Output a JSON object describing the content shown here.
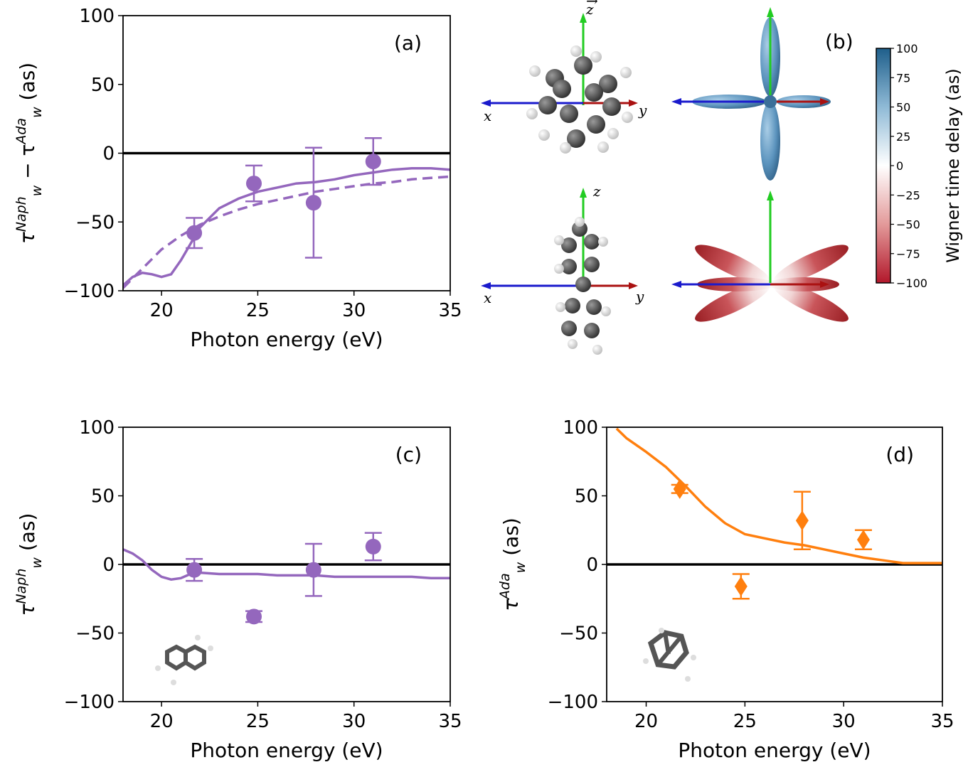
{
  "chart_data": [
    {
      "panel": "(a)",
      "type": "line",
      "xlabel": "Photon energy (eV)",
      "ylabel_main": "τ",
      "ylabel_sub1": "w",
      "ylabel_sup1": "Naph",
      "ylabel_minus": " − τ",
      "ylabel_sub2": "w",
      "ylabel_sup2": "Ada",
      "ylabel_unit": " (as)",
      "xlim": [
        18,
        35
      ],
      "ylim": [
        -100,
        100
      ],
      "xticks": [
        20,
        25,
        30,
        35
      ],
      "yticks": [
        -100,
        -50,
        0,
        50,
        100
      ],
      "ytick_labels": [
        "−100",
        "−50",
        "0",
        "50",
        "100"
      ],
      "color": "#9467bd",
      "zero_line": true,
      "series": [
        {
          "style": "solid",
          "x": [
            18,
            18.5,
            19,
            19.5,
            20,
            20.5,
            21,
            21.5,
            22,
            22.5,
            23,
            24,
            25,
            26,
            27,
            28,
            29,
            30,
            31,
            32,
            33,
            34,
            35
          ],
          "y": [
            -96,
            -90,
            -87,
            -88,
            -90,
            -88,
            -78,
            -66,
            -54,
            -47,
            -40,
            -33,
            -28,
            -25,
            -22,
            -21,
            -19,
            -16,
            -14,
            -12,
            -11,
            -11,
            -12
          ]
        },
        {
          "style": "dashed",
          "x": [
            18,
            19,
            20,
            21,
            22,
            23,
            24,
            25,
            26,
            27,
            28,
            29,
            30,
            31,
            32,
            33,
            34,
            35
          ],
          "y": [
            -98,
            -84,
            -70,
            -60,
            -52,
            -46,
            -41,
            -37,
            -34,
            -31,
            -28,
            -26,
            -24,
            -22,
            -21,
            -19,
            -18,
            -17
          ]
        }
      ],
      "points": {
        "marker": "circle",
        "x": [
          21.7,
          24.8,
          27.9,
          31.0
        ],
        "y": [
          -58,
          -22,
          -36,
          -6
        ],
        "yerr": [
          11,
          13,
          40,
          17
        ]
      }
    },
    {
      "panel": "(c)",
      "type": "line",
      "xlabel": "Photon energy (eV)",
      "ylabel_main": "τ",
      "ylabel_sub1": "w",
      "ylabel_sup1": "Naph",
      "ylabel_unit": " (as)",
      "xlim": [
        18,
        35
      ],
      "ylim": [
        -100,
        100
      ],
      "xticks": [
        20,
        25,
        30,
        35
      ],
      "yticks": [
        -100,
        -50,
        0,
        50,
        100
      ],
      "ytick_labels": [
        "−100",
        "−50",
        "0",
        "50",
        "100"
      ],
      "color": "#9467bd",
      "zero_line": true,
      "series": [
        {
          "style": "solid",
          "x": [
            18,
            18.5,
            19,
            19.5,
            20,
            20.5,
            21,
            21.5,
            22,
            23,
            24,
            25,
            26,
            27,
            28,
            29,
            30,
            31,
            32,
            33,
            34,
            35
          ],
          "y": [
            11,
            8,
            3,
            -4,
            -9,
            -11,
            -10,
            -7,
            -6,
            -7,
            -7,
            -7,
            -8,
            -8,
            -8,
            -9,
            -9,
            -9,
            -9,
            -9,
            -10,
            -10
          ]
        }
      ],
      "points": {
        "marker": "circle",
        "x": [
          21.7,
          24.8,
          27.9,
          31.0
        ],
        "y": [
          -4,
          -38,
          -4,
          13
        ],
        "yerr": [
          8,
          4,
          19,
          10
        ]
      }
    },
    {
      "panel": "(d)",
      "type": "line",
      "xlabel": "Photon energy (eV)",
      "ylabel_main": "τ",
      "ylabel_sub1": "w",
      "ylabel_sup1": "Ada",
      "ylabel_unit": " (as)",
      "xlim": [
        18,
        35
      ],
      "ylim": [
        -100,
        100
      ],
      "xticks": [
        20,
        25,
        30,
        35
      ],
      "yticks": [
        -100,
        -50,
        0,
        50,
        100
      ],
      "ytick_labels": [
        "−100",
        "−50",
        "0",
        "50",
        "100"
      ],
      "color": "#ff7f0e",
      "zero_line": true,
      "series": [
        {
          "style": "solid",
          "x": [
            18.5,
            19,
            20,
            21,
            22,
            23,
            24,
            25,
            26,
            27,
            28,
            29,
            30,
            31,
            32,
            33,
            34,
            35
          ],
          "y": [
            99,
            92,
            82,
            71,
            57,
            42,
            30,
            22,
            19,
            16,
            14,
            11,
            8,
            5,
            3,
            1,
            1,
            1
          ]
        }
      ],
      "points": {
        "marker": "diamond",
        "x": [
          21.7,
          24.8,
          27.9,
          31.0
        ],
        "y": [
          55,
          -16,
          32,
          18
        ],
        "yerr": [
          3,
          9,
          21,
          7
        ]
      }
    }
  ],
  "panel_b": {
    "label": "(b)",
    "axis_x": "x",
    "axis_y": "y",
    "axis_z": "z",
    "colorbar": {
      "title": "Wigner time delay (as)",
      "ticks": [
        100,
        75,
        50,
        25,
        0,
        -25,
        -50,
        -75,
        -100
      ],
      "tick_labels": [
        "100",
        "75",
        "50",
        "25",
        "0",
        "−25",
        "−50",
        "−75",
        "−100"
      ],
      "color_top": "#1f5f8b",
      "color_mid": "#ffffff",
      "color_bottom": "#b2182b"
    }
  }
}
